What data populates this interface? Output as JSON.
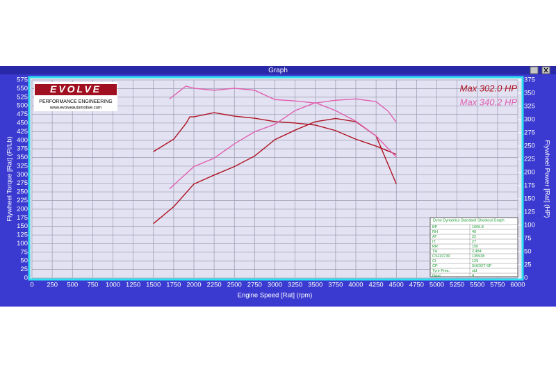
{
  "window": {
    "title": "Graph"
  },
  "logo": {
    "brand": "EVOLVE",
    "tagline": "PERFORMANCE ENGINEERING",
    "url": "www.evolveautomotive.com"
  },
  "chart_data": {
    "type": "line",
    "xlabel": "Engine Speed [Rat] (rpm)",
    "ylabel": "Flywheel Torque [Rat] (Ft/Lb)",
    "y2label": "Flywheel Power [Rat] (HP)",
    "xlim": [
      0,
      6000
    ],
    "xticks": [
      0,
      250,
      500,
      750,
      1000,
      1250,
      1500,
      1750,
      2000,
      2250,
      2500,
      2750,
      3000,
      3250,
      3500,
      3750,
      4000,
      4250,
      4500,
      4750,
      5000,
      5250,
      5500,
      5750,
      6000
    ],
    "ylim": [
      0,
      575
    ],
    "yticks": [
      0,
      25,
      50,
      75,
      100,
      125,
      150,
      175,
      200,
      225,
      250,
      275,
      300,
      325,
      350,
      375,
      400,
      425,
      450,
      475,
      500,
      525,
      550,
      575
    ],
    "y2lim": [
      0,
      375
    ],
    "y2ticks": [
      0,
      25,
      50,
      75,
      100,
      125,
      150,
      175,
      200,
      225,
      250,
      275,
      300,
      325,
      350,
      375
    ],
    "grid": true,
    "series": [
      {
        "color": "#b01020",
        "axis": "y",
        "x": [
          1500,
          1750,
          1900,
          1950,
          2000,
          2250,
          2500,
          2750,
          3000,
          3250,
          3500,
          3750,
          4000,
          4250,
          4500
        ],
        "values": [
          367,
          403,
          448,
          468,
          468,
          480,
          470,
          464,
          454,
          450,
          444,
          428,
          403,
          383,
          359
        ]
      },
      {
        "color": "#b01020",
        "axis": "y2",
        "x": [
          1500,
          1750,
          2000,
          2250,
          2500,
          2750,
          3000,
          3250,
          3500,
          3750,
          4000,
          4250,
          4500
        ],
        "values": [
          103,
          135,
          178,
          195,
          211,
          231,
          262,
          280,
          296,
          302,
          296,
          269,
          178
        ]
      },
      {
        "color": "#e060b0",
        "axis": "y",
        "x": [
          1700,
          1900,
          2000,
          2250,
          2500,
          2750,
          3000,
          3250,
          3500,
          3750,
          4000,
          4250,
          4400,
          4500
        ],
        "values": [
          520,
          557,
          551,
          545,
          551,
          545,
          518,
          514,
          508,
          516,
          520,
          512,
          484,
          452
        ]
      },
      {
        "color": "#e060b0",
        "axis": "y2",
        "x": [
          1700,
          2000,
          2250,
          2500,
          2750,
          3000,
          3250,
          3500,
          3750,
          4000,
          4250,
          4500
        ],
        "values": [
          169,
          211,
          227,
          254,
          277,
          291,
          317,
          332,
          317,
          297,
          269,
          229
        ]
      }
    ],
    "annotations": [
      {
        "text": "Max 302.0 HP",
        "color": "#b01020"
      },
      {
        "text": "Max 340.2 HP",
        "color": "#e060b0"
      }
    ]
  },
  "info_table": {
    "title": "Dyno Dynamics Standard Shootout Graph",
    "rows": [
      [
        "BP",
        "1006.8"
      ],
      [
        "RH",
        "49"
      ],
      [
        "AT",
        "22"
      ],
      [
        "IT",
        "27"
      ],
      [
        "RR",
        "150"
      ],
      [
        "TH",
        "2.484"
      ],
      [
        "CS110730",
        "135938"
      ],
      [
        "CI",
        "129"
      ],
      [
        "CP",
        "SHOOT SP"
      ],
      [
        "Tyre Pres.",
        "std"
      ],
      [
        "Gear",
        "4"
      ]
    ]
  }
}
